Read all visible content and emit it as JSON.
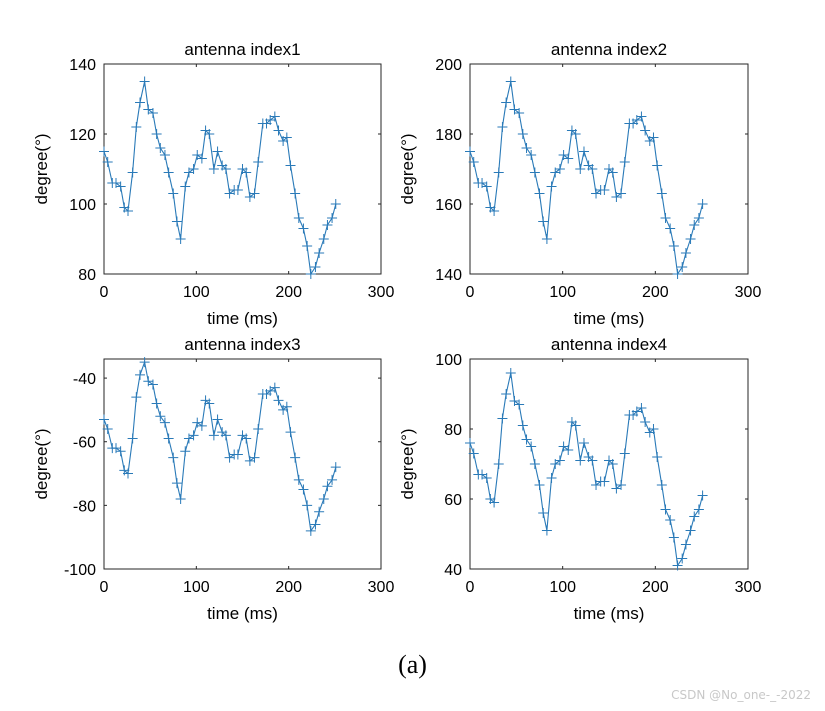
{
  "caption": "(a)",
  "watermark": "CSDN @No_one-_-2022",
  "colors": {
    "line": "#2a7ab8",
    "axis": "#262626",
    "background": "#ffffff"
  },
  "chart_data": [
    {
      "type": "line",
      "title": "antenna index1",
      "xlabel": "time (ms)",
      "ylabel": "degree(°)",
      "xlim": [
        0,
        300
      ],
      "ylim": [
        80,
        140
      ],
      "xticks": [
        0,
        100,
        200,
        300
      ],
      "yticks": [
        80,
        100,
        120,
        140
      ],
      "marker": "+",
      "series": [
        {
          "name": "antenna index1",
          "x": [
            0,
            4,
            9,
            13,
            18,
            22,
            26,
            31,
            35,
            39,
            44,
            48,
            53,
            57,
            61,
            66,
            70,
            75,
            79,
            83,
            88,
            92,
            97,
            101,
            106,
            110,
            114,
            119,
            123,
            128,
            132,
            136,
            141,
            145,
            150,
            154,
            158,
            163,
            167,
            172,
            176,
            180,
            185,
            189,
            194,
            198,
            202,
            207,
            211,
            216,
            220,
            224,
            229,
            233,
            238,
            242,
            247,
            251
          ],
          "values": [
            115,
            112,
            106,
            106,
            105,
            99,
            98,
            109,
            122,
            129,
            135,
            127,
            126,
            120,
            116,
            114,
            109,
            103,
            95,
            90,
            105,
            109,
            110,
            114,
            113,
            121,
            120,
            110,
            115,
            111,
            110,
            103,
            104,
            104,
            110,
            109,
            102,
            103,
            112,
            123,
            123,
            124,
            125,
            121,
            118,
            119,
            111,
            103,
            96,
            93,
            88,
            80,
            82,
            86,
            90,
            94,
            96,
            100
          ]
        }
      ]
    },
    {
      "type": "line",
      "title": "antenna index2",
      "xlabel": "time (ms)",
      "ylabel": "degree(°)",
      "xlim": [
        0,
        300
      ],
      "ylim": [
        140,
        200
      ],
      "xticks": [
        0,
        100,
        200,
        300
      ],
      "yticks": [
        140,
        160,
        180,
        200
      ],
      "marker": "+",
      "series": [
        {
          "name": "antenna index2",
          "x": [
            0,
            4,
            9,
            13,
            18,
            22,
            26,
            31,
            35,
            39,
            44,
            48,
            53,
            57,
            61,
            66,
            70,
            75,
            79,
            83,
            88,
            92,
            97,
            101,
            106,
            110,
            114,
            119,
            123,
            128,
            132,
            136,
            141,
            145,
            150,
            154,
            158,
            163,
            167,
            172,
            176,
            180,
            185,
            189,
            194,
            198,
            202,
            207,
            211,
            216,
            220,
            224,
            229,
            233,
            238,
            242,
            247,
            251
          ],
          "values": [
            175,
            172,
            166,
            166,
            165,
            159,
            158,
            169,
            182,
            189,
            195,
            187,
            186,
            180,
            176,
            174,
            169,
            163,
            155,
            150,
            165,
            169,
            170,
            174,
            173,
            181,
            180,
            170,
            175,
            171,
            170,
            163,
            164,
            164,
            170,
            169,
            162,
            163,
            172,
            183,
            183,
            184,
            185,
            181,
            178,
            179,
            171,
            163,
            156,
            153,
            148,
            140,
            142,
            146,
            150,
            154,
            156,
            160
          ]
        }
      ]
    },
    {
      "type": "line",
      "title": "antenna index3",
      "xlabel": "time (ms)",
      "ylabel": "degree(°)",
      "xlim": [
        0,
        300
      ],
      "ylim": [
        -100,
        -34
      ],
      "xticks": [
        0,
        100,
        200,
        300
      ],
      "yticks": [
        -100,
        -80,
        -60,
        -40
      ],
      "marker": "+",
      "series": [
        {
          "name": "antenna index3",
          "x": [
            0,
            4,
            9,
            13,
            18,
            22,
            26,
            31,
            35,
            39,
            44,
            48,
            53,
            57,
            61,
            66,
            70,
            75,
            79,
            83,
            88,
            92,
            97,
            101,
            106,
            110,
            114,
            119,
            123,
            128,
            132,
            136,
            141,
            145,
            150,
            154,
            158,
            163,
            167,
            172,
            176,
            180,
            185,
            189,
            194,
            198,
            202,
            207,
            211,
            216,
            220,
            224,
            229,
            233,
            238,
            242,
            247,
            251
          ],
          "values": [
            -53,
            -56,
            -62,
            -62,
            -63,
            -69,
            -70,
            -59,
            -46,
            -39,
            -35,
            -41,
            -42,
            -48,
            -52,
            -54,
            -59,
            -65,
            -73,
            -78,
            -63,
            -59,
            -58,
            -54,
            -55,
            -47,
            -48,
            -58,
            -53,
            -57,
            -58,
            -65,
            -64,
            -64,
            -58,
            -59,
            -66,
            -65,
            -56,
            -45,
            -45,
            -44,
            -43,
            -47,
            -50,
            -49,
            -57,
            -65,
            -72,
            -75,
            -80,
            -88,
            -86,
            -82,
            -78,
            -74,
            -72,
            -68
          ]
        }
      ]
    },
    {
      "type": "line",
      "title": "antenna index4",
      "xlabel": "time (ms)",
      "ylabel": "degree(°)",
      "xlim": [
        0,
        300
      ],
      "ylim": [
        40,
        100
      ],
      "xticks": [
        0,
        100,
        200,
        300
      ],
      "yticks": [
        40,
        60,
        80,
        100
      ],
      "marker": "+",
      "series": [
        {
          "name": "antenna index4",
          "x": [
            0,
            4,
            9,
            13,
            18,
            22,
            26,
            31,
            35,
            39,
            44,
            48,
            53,
            57,
            61,
            66,
            70,
            75,
            79,
            83,
            88,
            92,
            97,
            101,
            106,
            110,
            114,
            119,
            123,
            128,
            132,
            136,
            141,
            145,
            150,
            154,
            158,
            163,
            167,
            172,
            176,
            180,
            185,
            189,
            194,
            198,
            202,
            207,
            211,
            216,
            220,
            224,
            229,
            233,
            238,
            242,
            247,
            251
          ],
          "values": [
            76,
            73,
            67,
            67,
            66,
            60,
            59,
            70,
            83,
            90,
            96,
            88,
            87,
            81,
            77,
            75,
            70,
            64,
            56,
            51,
            66,
            70,
            71,
            75,
            74,
            82,
            81,
            71,
            76,
            72,
            71,
            64,
            65,
            65,
            71,
            70,
            63,
            64,
            73,
            84,
            84,
            85,
            86,
            82,
            79,
            80,
            72,
            64,
            57,
            54,
            49,
            41,
            43,
            47,
            51,
            55,
            57,
            61
          ]
        }
      ]
    }
  ]
}
